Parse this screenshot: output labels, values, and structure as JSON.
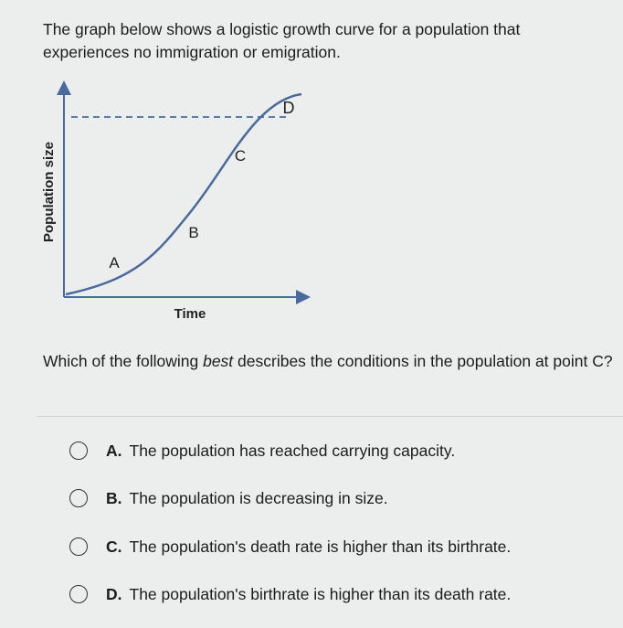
{
  "intro": "The graph below shows a logistic growth curve for a population that experiences no immigration or emigration.",
  "graph": {
    "y_label": "Population size",
    "x_label": "Time",
    "points": [
      "A",
      "B",
      "C",
      "D"
    ]
  },
  "question": {
    "before": "Which of the following ",
    "emphasis": "best",
    "after": " describes the conditions in the population at point C?"
  },
  "options": [
    {
      "letter": "A.",
      "text": "The population has reached carrying capacity."
    },
    {
      "letter": "B.",
      "text": "The population is decreasing in size."
    },
    {
      "letter": "C.",
      "text": "The population's death rate is higher than its birthrate."
    },
    {
      "letter": "D.",
      "text": "The population's birthrate is higher than its death rate."
    }
  ]
}
